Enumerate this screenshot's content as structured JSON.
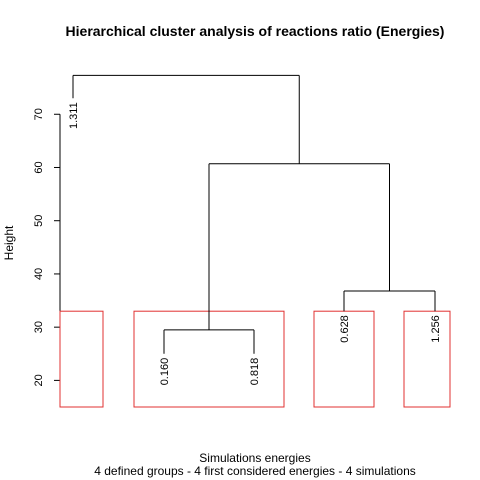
{
  "chart_data": {
    "type": "dendrogram",
    "title": "Hierarchical cluster analysis of reactions ratio (Energies)",
    "xlabel": "Simulations energies",
    "subtitle": "4 defined groups - 4 first considered energies - 4 simulations",
    "ylabel": "Height",
    "ylim": [
      15,
      77
    ],
    "yticks": [
      20,
      30,
      40,
      50,
      60,
      70
    ],
    "leaves": [
      {
        "label": "1.311",
        "height": 73
      },
      {
        "label": "0.160",
        "height": 25
      },
      {
        "label": "0.818",
        "height": 25
      },
      {
        "label": "0.628",
        "height": 33
      },
      {
        "label": "1.256",
        "height": 33
      }
    ],
    "merges": [
      {
        "left": "leaf:1",
        "right": "leaf:2",
        "height": 29.5
      },
      {
        "left": "leaf:3",
        "right": "leaf:4",
        "height": 36.8
      },
      {
        "left": "merge:0",
        "right": "merge:1",
        "height": 60.7
      },
      {
        "left": "leaf:0",
        "right": "merge:2",
        "height": 77.3
      }
    ],
    "groups": [
      {
        "leaves": [
          0
        ]
      },
      {
        "leaves": [
          1,
          2
        ]
      },
      {
        "leaves": [
          3
        ]
      },
      {
        "leaves": [
          4
        ]
      }
    ],
    "group_color": "#e03030"
  }
}
